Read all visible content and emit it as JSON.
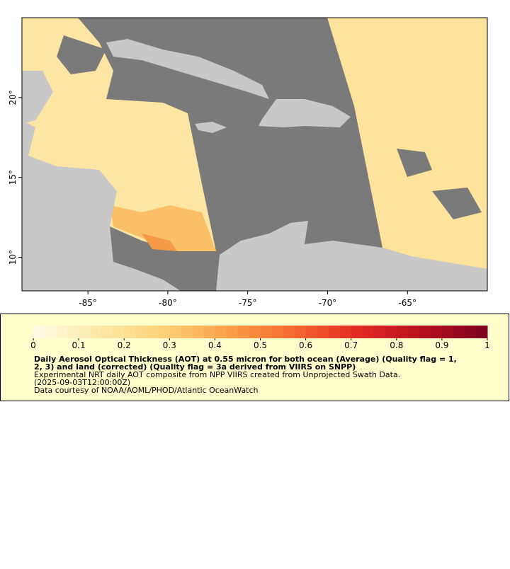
{
  "map": {
    "xlim": [
      -89.13,
      -60.0
    ],
    "ylim": [
      7.9,
      25.0
    ],
    "xticks": [
      {
        "value": -85,
        "label": "-85°"
      },
      {
        "value": -80,
        "label": "-80°"
      },
      {
        "value": -75,
        "label": "-75°"
      },
      {
        "value": -70,
        "label": "-70°"
      },
      {
        "value": -65,
        "label": "-65°"
      }
    ],
    "yticks": [
      {
        "value": 10,
        "label": "10°"
      },
      {
        "value": 15,
        "label": "15°"
      },
      {
        "value": 20,
        "label": "20°"
      }
    ]
  },
  "colorbar": {
    "lim": [
      0,
      1
    ],
    "ticks": [
      0,
      0.1,
      0.2,
      0.3,
      0.4,
      0.5,
      0.6,
      0.7,
      0.8,
      0.9,
      1
    ],
    "colors": [
      "#fffde8",
      "#fde9a8",
      "#fcd27a",
      "#fba04a",
      "#f46a30",
      "#e22a22",
      "#b8101e",
      "#7a0020"
    ],
    "steps": 40
  },
  "caption": {
    "title_lines": [
      "Daily Aerosol Optical Thickness (AOT) at 0.55 micron for both ocean (Average) (Quality flag = 1,",
      "2, 3) and land (corrected) (Quality flag = 3a derived from VIIRS on SNPP)"
    ],
    "lines": [
      "Experimental NRT daily AOT composite from NPP VIIRS created from Unprojected Swath Data.",
      "(2025-09-03T12:00:00Z)",
      "Data courtesy of NOAA/AOML/PHOD/Atlantic OceanWatch"
    ]
  }
}
